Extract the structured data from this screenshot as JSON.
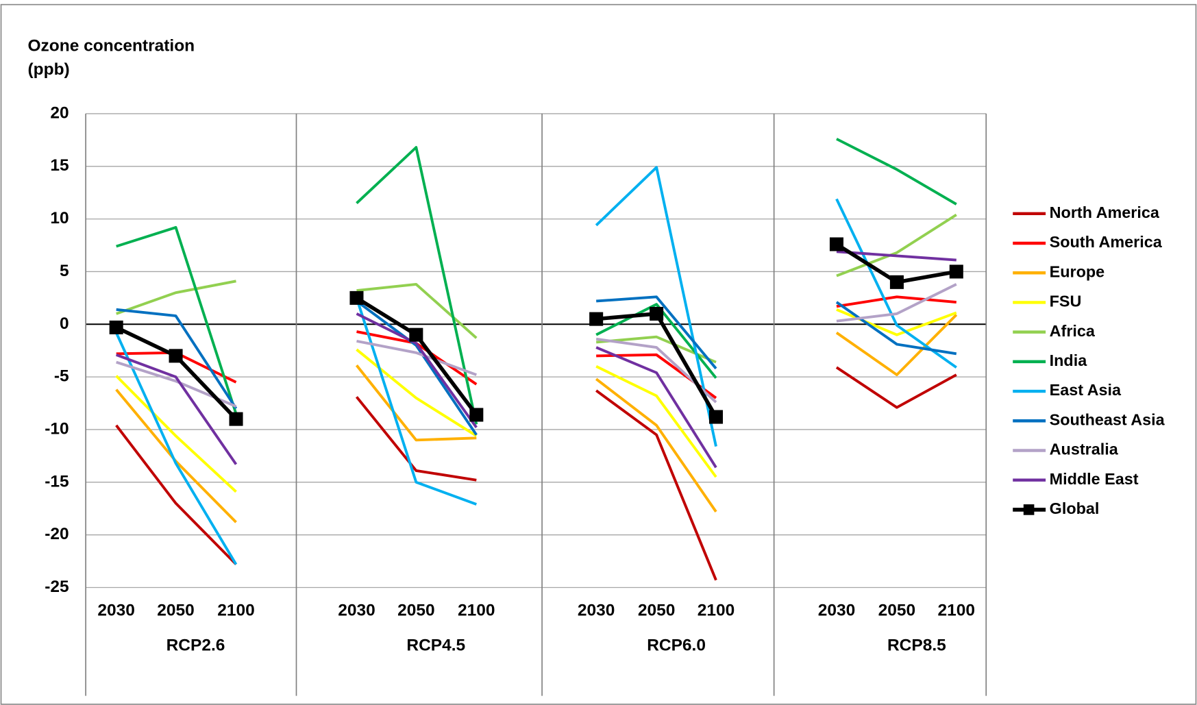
{
  "chart_data": {
    "type": "line",
    "y_label": [
      "Ozone concentration",
      "(ppb)"
    ],
    "categories": [
      "2030",
      "2050",
      "2100",
      "2030",
      "2050",
      "2100",
      "2030",
      "2050",
      "2100",
      "2030",
      "2050",
      "2100"
    ],
    "groups": [
      "RCP2.6",
      "RCP4.5",
      "RCP6.0",
      "RCP8.5"
    ],
    "ylim": [
      -25,
      20
    ],
    "yticks": [
      -25,
      -20,
      -15,
      -10,
      -5,
      0,
      5,
      10,
      15,
      20
    ],
    "grid": true,
    "legend": "right",
    "series": [
      {
        "name": "North America",
        "color": "#c00000",
        "values": [
          -9.6,
          -17,
          -22.8,
          -6.9,
          -13.9,
          -14.8,
          -6.3,
          -10.5,
          -24.3,
          -4.1,
          -7.9,
          -4.8
        ]
      },
      {
        "name": "South America",
        "color": "#ff0000",
        "values": [
          -2.8,
          -2.7,
          -5.5,
          -0.7,
          -1.8,
          -5.7,
          -3.0,
          -2.9,
          -7.0,
          1.7,
          2.6,
          2.1
        ]
      },
      {
        "name": "Europe",
        "color": "#ffb000",
        "values": [
          -6.2,
          -13,
          -18.8,
          -3.9,
          -11,
          -10.8,
          -5.2,
          -9.6,
          -17.8,
          -0.8,
          -4.8,
          0.9
        ]
      },
      {
        "name": "FSU",
        "color": "#ffff00",
        "values": [
          -4.9,
          -10.6,
          -15.9,
          -2.4,
          -7.0,
          -10.6,
          -4.0,
          -6.8,
          -14.5,
          1.4,
          -1.0,
          1.1
        ]
      },
      {
        "name": "Africa",
        "color": "#92d050",
        "values": [
          1.0,
          3.0,
          4.1,
          3.2,
          3.8,
          -1.3,
          -1.7,
          -1.2,
          -3.6,
          4.6,
          6.8,
          10.4
        ]
      },
      {
        "name": "India",
        "color": "#00b050",
        "values": [
          7.4,
          9.2,
          -8.5,
          11.5,
          16.8,
          -9.5,
          -1.0,
          1.9,
          -5.1,
          17.6,
          14.7,
          11.4
        ]
      },
      {
        "name": "East Asia",
        "color": "#00b0f0",
        "values": [
          -0.8,
          -13.2,
          -22.8,
          2.5,
          -15,
          -17.1,
          9.4,
          14.9,
          -11.6,
          11.9,
          -0.1,
          -4.1
        ]
      },
      {
        "name": "Southeast Asia",
        "color": "#0070c0",
        "values": [
          1.4,
          0.8,
          -8.0,
          2.2,
          -2.0,
          -10.5,
          2.2,
          2.6,
          -4.2,
          2.1,
          -1.9,
          -2.8
        ]
      },
      {
        "name": "Australia",
        "color": "#b3a2c7",
        "values": [
          -3.6,
          -5.4,
          -7.8,
          -1.6,
          -2.7,
          -4.8,
          -1.4,
          -2.2,
          -7.4,
          0.3,
          1.0,
          3.8
        ]
      },
      {
        "name": "Middle East",
        "color": "#7030a0",
        "values": [
          -2.9,
          -5.0,
          -13.3,
          1.0,
          -1.8,
          -9.8,
          -2.2,
          -4.6,
          -13.6,
          6.9,
          6.5,
          6.1
        ]
      },
      {
        "name": "Global",
        "color": "#000000",
        "marker": "square",
        "values": [
          -0.3,
          -3.0,
          -9.0,
          2.5,
          -1.0,
          -8.6,
          0.5,
          1.0,
          -8.8,
          7.6,
          4.0,
          5.0
        ]
      }
    ]
  }
}
